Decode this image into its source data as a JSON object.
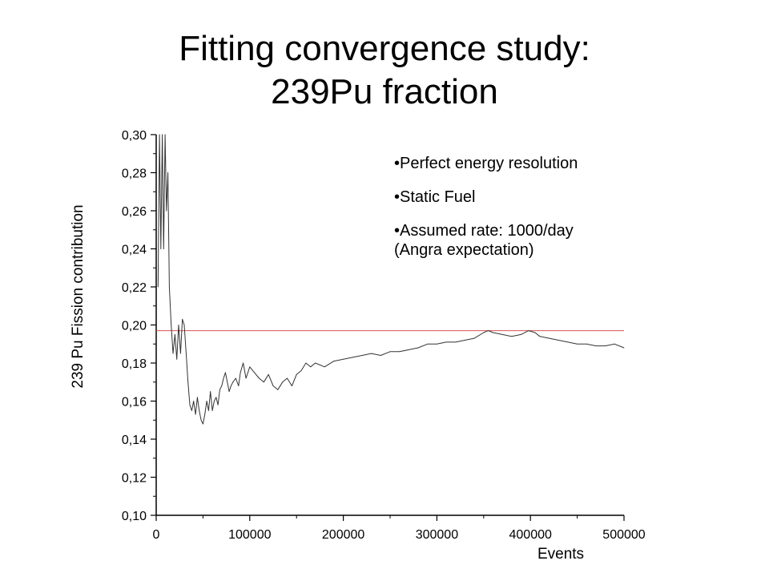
{
  "slide": {
    "title_line1": "Fitting convergence study:",
    "title_line2": "239Pu fraction"
  },
  "bullets": [
    "•Perfect energy resolution",
    "•Static Fuel",
    "•Assumed rate: 1000/day",
    "(Angra expectation)"
  ],
  "chart_data": {
    "type": "line",
    "title": "",
    "xlabel": "Events",
    "ylabel": "239 Pu Fission contribution",
    "xlim": [
      0,
      500000
    ],
    "ylim": [
      0.1,
      0.3
    ],
    "xticks": [
      0,
      100000,
      200000,
      300000,
      400000,
      500000
    ],
    "xtick_labels": [
      "0",
      "100000",
      "200000",
      "300000",
      "400000",
      "500000"
    ],
    "yticks": [
      0.1,
      0.12,
      0.14,
      0.16,
      0.18,
      0.2,
      0.22,
      0.24,
      0.26,
      0.28,
      0.3
    ],
    "ytick_labels": [
      "0,10",
      "0,12",
      "0,14",
      "0,16",
      "0,18",
      "0,20",
      "0,22",
      "0,24",
      "0,26",
      "0,28",
      "0,30"
    ],
    "reference_line": {
      "y": 0.197,
      "color": "#d9534f"
    },
    "series": [
      {
        "color": "#333333",
        "x": [
          2000,
          3500,
          5000,
          6500,
          8000,
          9500,
          11000,
          12500,
          14000,
          16000,
          18000,
          20000,
          22000,
          24000,
          26000,
          28000,
          30000,
          32000,
          34000,
          36000,
          38000,
          40000,
          42000,
          44000,
          46000,
          48000,
          50000,
          52000,
          54000,
          56000,
          58000,
          60000,
          62000,
          64000,
          66000,
          68000,
          70000,
          72000,
          74000,
          76000,
          78000,
          80000,
          82000,
          85000,
          88000,
          90000,
          93000,
          96000,
          100000,
          105000,
          110000,
          115000,
          120000,
          125000,
          130000,
          135000,
          140000,
          145000,
          150000,
          155000,
          160000,
          165000,
          170000,
          180000,
          190000,
          200000,
          210000,
          220000,
          230000,
          240000,
          250000,
          260000,
          270000,
          280000,
          290000,
          300000,
          310000,
          320000,
          330000,
          340000,
          350000,
          355000,
          360000,
          370000,
          380000,
          390000,
          398000,
          405000,
          410000,
          420000,
          430000,
          440000,
          450000,
          460000,
          470000,
          480000,
          490000,
          500000
        ],
        "values": [
          0.22,
          0.3,
          0.24,
          0.3,
          0.24,
          0.3,
          0.26,
          0.28,
          0.22,
          0.2,
          0.185,
          0.195,
          0.182,
          0.2,
          0.185,
          0.203,
          0.2,
          0.185,
          0.17,
          0.158,
          0.155,
          0.16,
          0.153,
          0.162,
          0.155,
          0.15,
          0.148,
          0.153,
          0.16,
          0.155,
          0.165,
          0.155,
          0.16,
          0.162,
          0.158,
          0.166,
          0.168,
          0.172,
          0.175,
          0.17,
          0.165,
          0.168,
          0.17,
          0.172,
          0.168,
          0.175,
          0.18,
          0.172,
          0.178,
          0.175,
          0.172,
          0.17,
          0.174,
          0.168,
          0.166,
          0.17,
          0.172,
          0.168,
          0.174,
          0.176,
          0.18,
          0.178,
          0.18,
          0.178,
          0.181,
          0.182,
          0.183,
          0.184,
          0.185,
          0.184,
          0.186,
          0.186,
          0.187,
          0.188,
          0.19,
          0.19,
          0.191,
          0.191,
          0.192,
          0.193,
          0.196,
          0.197,
          0.196,
          0.195,
          0.194,
          0.195,
          0.197,
          0.196,
          0.194,
          0.193,
          0.192,
          0.191,
          0.19,
          0.19,
          0.189,
          0.189,
          0.19,
          0.188
        ]
      }
    ],
    "legend": "none",
    "grid": false
  }
}
